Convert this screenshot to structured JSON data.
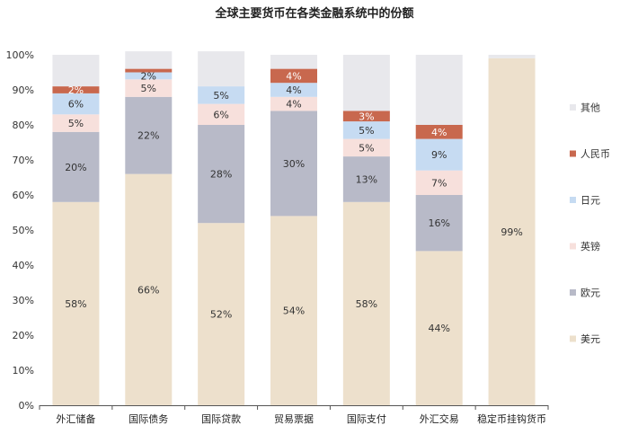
{
  "chart_data": {
    "type": "bar",
    "stacked": true,
    "title": "全球主要货币在各类金融系统中的份额",
    "xlabel": "",
    "ylabel": "",
    "ylim": [
      0,
      100
    ],
    "y_ticks": [
      "0%",
      "10%",
      "20%",
      "30%",
      "40%",
      "50%",
      "60%",
      "70%",
      "80%",
      "90%",
      "100%"
    ],
    "grid": false,
    "legend_position": "right",
    "categories": [
      "外汇储备",
      "国际债务",
      "国际贷款",
      "贸易票据",
      "国际支付",
      "外汇交易",
      "稳定币挂钩货币"
    ],
    "series": [
      {
        "name": "美元",
        "color": "#ede0cc",
        "values": [
          58,
          66,
          52,
          54,
          58,
          44,
          99
        ],
        "labels": [
          "58%",
          "66%",
          "52%",
          "54%",
          "58%",
          "44%",
          "99%"
        ]
      },
      {
        "name": "欧元",
        "color": "#b8bac8",
        "values": [
          20,
          22,
          28,
          30,
          13,
          16,
          0
        ],
        "labels": [
          "20%",
          "22%",
          "28%",
          "30%",
          "13%",
          "16%",
          ""
        ]
      },
      {
        "name": "英镑",
        "color": "#f7e0dc",
        "values": [
          5,
          5,
          6,
          4,
          5,
          7,
          0
        ],
        "labels": [
          "5%",
          "5%",
          "6%",
          "4%",
          "5%",
          "7%",
          ""
        ]
      },
      {
        "name": "日元",
        "color": "#c6dbf2",
        "values": [
          6,
          2,
          5,
          4,
          5,
          9,
          0
        ],
        "labels": [
          "6%",
          "2%",
          "5%",
          "4%",
          "5%",
          "9%",
          ""
        ]
      },
      {
        "name": "人民币",
        "color": "#c8684e",
        "values": [
          2,
          1,
          0,
          4,
          3,
          4,
          0
        ],
        "labels": [
          "2%",
          "",
          "",
          "4%",
          "3%",
          "4%",
          ""
        ]
      },
      {
        "name": "其他",
        "color": "#e8e8ec",
        "values": [
          9,
          5,
          10,
          4,
          16,
          20,
          1
        ],
        "labels": [
          "",
          "",
          "",
          "",
          "",
          "",
          ""
        ]
      }
    ]
  }
}
